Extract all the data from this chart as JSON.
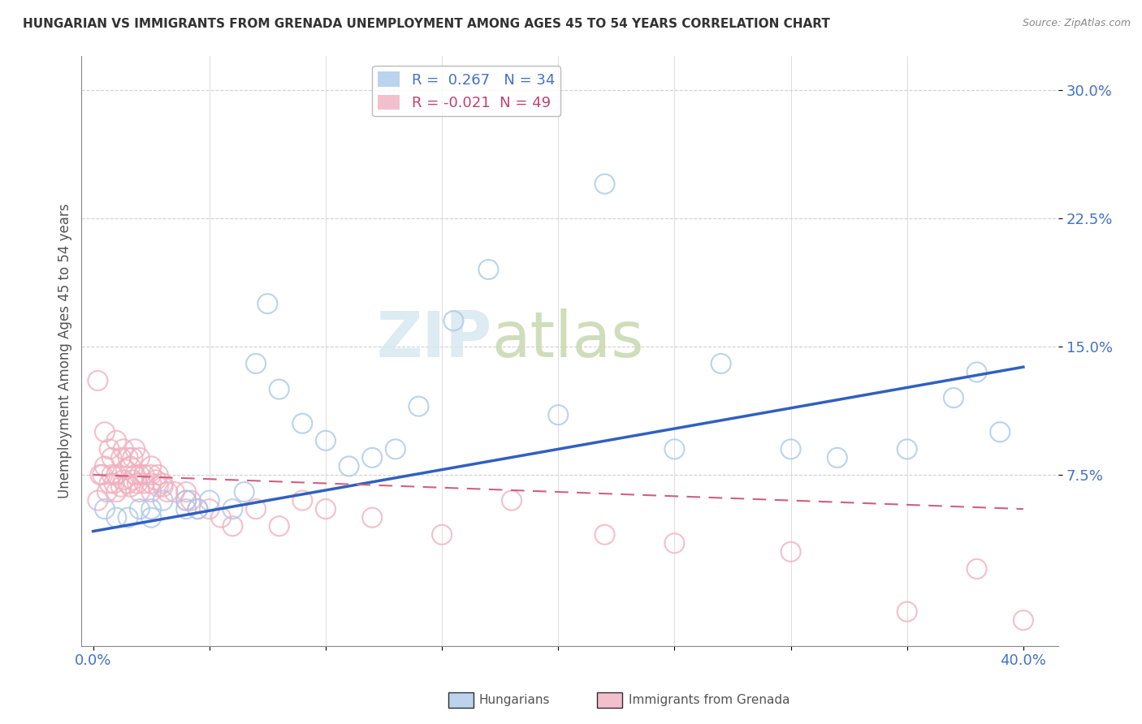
{
  "title": "HUNGARIAN VS IMMIGRANTS FROM GRENADA UNEMPLOYMENT AMONG AGES 45 TO 54 YEARS CORRELATION CHART",
  "source": "Source: ZipAtlas.com",
  "ylabel": "Unemployment Among Ages 45 to 54 years",
  "xlim": [
    -0.005,
    0.415
  ],
  "ylim": [
    -0.025,
    0.32
  ],
  "xticks": [
    0.0,
    0.05,
    0.1,
    0.15,
    0.2,
    0.25,
    0.3,
    0.35,
    0.4
  ],
  "xtick_labels": [
    "0.0%",
    "",
    "",
    "",
    "",
    "",
    "",
    "",
    "40.0%"
  ],
  "ytick_positions": [
    0.075,
    0.15,
    0.225,
    0.3
  ],
  "ytick_labels": [
    "7.5%",
    "15.0%",
    "22.5%",
    "30.0%"
  ],
  "background_color": "#ffffff",
  "grid_color": "#d0d0d0",
  "watermark_zip": "ZIP",
  "watermark_atlas": "atlas",
  "blue_color": "#aac8e8",
  "pink_color": "#f0b0c0",
  "blue_line_color": "#3060c0",
  "pink_line_color": "#d06080",
  "blue_R": 0.267,
  "blue_N": 34,
  "pink_R": -0.021,
  "pink_N": 49,
  "blue_scatter_x": [
    0.005,
    0.01,
    0.015,
    0.02,
    0.025,
    0.025,
    0.03,
    0.04,
    0.04,
    0.045,
    0.05,
    0.06,
    0.065,
    0.07,
    0.075,
    0.08,
    0.09,
    0.1,
    0.11,
    0.12,
    0.13,
    0.14,
    0.155,
    0.17,
    0.2,
    0.22,
    0.25,
    0.27,
    0.3,
    0.32,
    0.35,
    0.37,
    0.38,
    0.39
  ],
  "blue_scatter_y": [
    0.055,
    0.05,
    0.05,
    0.055,
    0.05,
    0.055,
    0.06,
    0.055,
    0.06,
    0.055,
    0.06,
    0.055,
    0.065,
    0.14,
    0.175,
    0.125,
    0.105,
    0.095,
    0.08,
    0.085,
    0.09,
    0.115,
    0.165,
    0.195,
    0.11,
    0.245,
    0.09,
    0.14,
    0.09,
    0.085,
    0.09,
    0.12,
    0.135,
    0.1
  ],
  "pink_scatter_x": [
    0.002,
    0.004,
    0.005,
    0.006,
    0.007,
    0.008,
    0.009,
    0.01,
    0.01,
    0.012,
    0.013,
    0.014,
    0.015,
    0.016,
    0.017,
    0.018,
    0.019,
    0.02,
    0.02,
    0.022,
    0.025,
    0.025,
    0.025,
    0.027,
    0.028,
    0.03,
    0.03,
    0.032,
    0.035,
    0.04,
    0.04,
    0.042,
    0.045,
    0.05,
    0.055,
    0.06,
    0.07,
    0.08,
    0.09,
    0.1,
    0.12,
    0.15,
    0.18,
    0.22,
    0.25,
    0.3,
    0.35,
    0.38,
    0.4
  ],
  "pink_scatter_y": [
    0.06,
    0.075,
    0.08,
    0.065,
    0.07,
    0.075,
    0.07,
    0.065,
    0.075,
    0.068,
    0.072,
    0.078,
    0.07,
    0.068,
    0.072,
    0.075,
    0.07,
    0.065,
    0.075,
    0.07,
    0.065,
    0.07,
    0.075,
    0.072,
    0.068,
    0.068,
    0.07,
    0.065,
    0.065,
    0.065,
    0.06,
    0.06,
    0.055,
    0.055,
    0.05,
    0.045,
    0.055,
    0.045,
    0.06,
    0.055,
    0.05,
    0.04,
    0.06,
    0.04,
    0.035,
    0.03,
    -0.005,
    0.02,
    -0.01
  ],
  "pink_extra_x": [
    0.002,
    0.003,
    0.005,
    0.007,
    0.008,
    0.01,
    0.012,
    0.013,
    0.015,
    0.016,
    0.017,
    0.018,
    0.02,
    0.022,
    0.025,
    0.028
  ],
  "pink_extra_y": [
    0.13,
    0.075,
    0.1,
    0.09,
    0.085,
    0.095,
    0.085,
    0.09,
    0.085,
    0.08,
    0.085,
    0.09,
    0.085,
    0.075,
    0.08,
    0.075
  ],
  "blue_line_x": [
    0.0,
    0.4
  ],
  "blue_line_y": [
    0.042,
    0.138
  ],
  "pink_line_x": [
    0.0,
    0.4
  ],
  "pink_line_y": [
    0.075,
    0.055
  ]
}
